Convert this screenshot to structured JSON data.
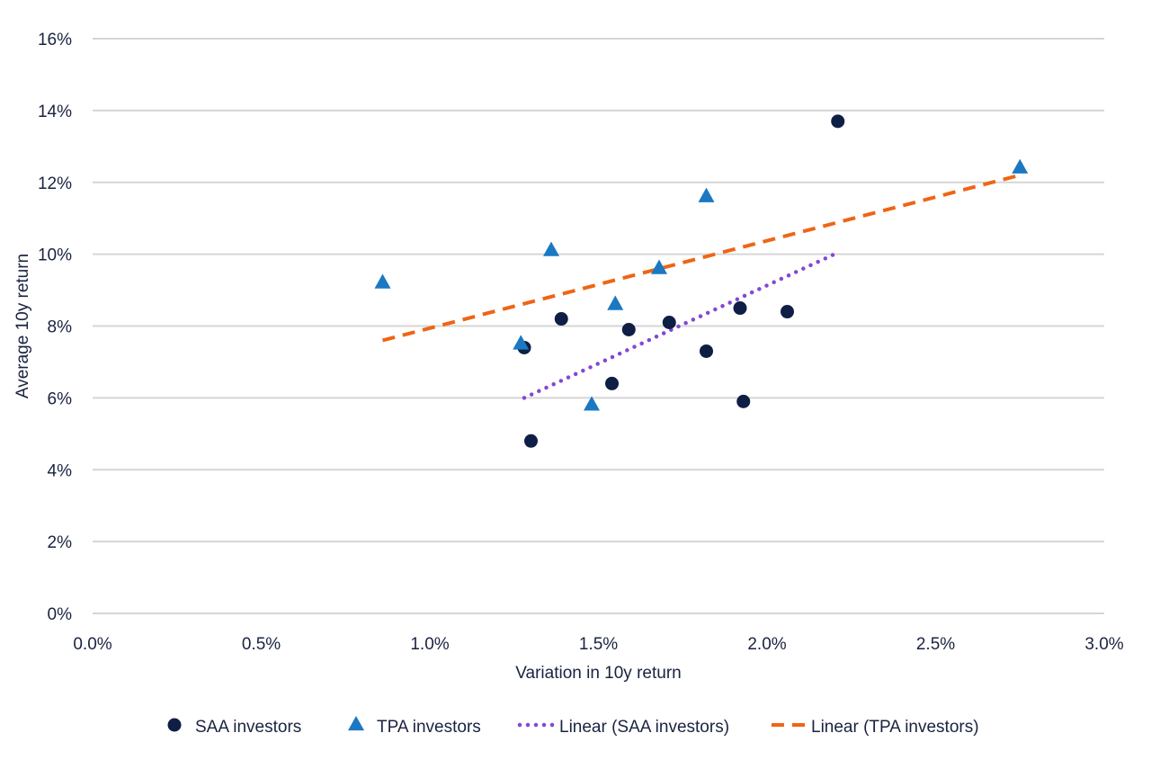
{
  "chart_data": {
    "type": "scatter",
    "title": "",
    "xlabel": "Variation in 10y return",
    "ylabel": "Average 10y return",
    "xlim": [
      0,
      3.0
    ],
    "ylim": [
      0,
      16
    ],
    "x_ticks": [
      0,
      0.5,
      1.0,
      1.5,
      2.0,
      2.5,
      3.0
    ],
    "x_tick_labels": [
      "0.0%",
      "0.5%",
      "1.0%",
      "1.5%",
      "2.0%",
      "2.5%",
      "3.0%"
    ],
    "y_ticks": [
      0,
      2,
      4,
      6,
      8,
      10,
      12,
      14,
      16
    ],
    "y_tick_labels": [
      "0%",
      "2%",
      "4%",
      "6%",
      "8%",
      "10%",
      "12%",
      "14%",
      "16%"
    ],
    "grid": "horizontal",
    "legend_position": "bottom",
    "series": [
      {
        "name": "SAA investors",
        "marker": "circle",
        "color": "#0f1e45",
        "points": [
          {
            "x": 1.28,
            "y": 7.4
          },
          {
            "x": 1.3,
            "y": 4.8
          },
          {
            "x": 1.39,
            "y": 8.2
          },
          {
            "x": 1.54,
            "y": 6.4
          },
          {
            "x": 1.59,
            "y": 7.9
          },
          {
            "x": 1.71,
            "y": 8.1
          },
          {
            "x": 1.82,
            "y": 7.3
          },
          {
            "x": 1.92,
            "y": 8.5
          },
          {
            "x": 1.93,
            "y": 5.9
          },
          {
            "x": 2.06,
            "y": 8.4
          },
          {
            "x": 2.21,
            "y": 13.7
          }
        ]
      },
      {
        "name": "TPA investors",
        "marker": "triangle",
        "color": "#1b78c2",
        "points": [
          {
            "x": 0.86,
            "y": 9.2
          },
          {
            "x": 1.27,
            "y": 7.5
          },
          {
            "x": 1.36,
            "y": 10.1
          },
          {
            "x": 1.48,
            "y": 5.8
          },
          {
            "x": 1.55,
            "y": 8.6
          },
          {
            "x": 1.68,
            "y": 9.6
          },
          {
            "x": 1.82,
            "y": 11.6
          },
          {
            "x": 2.75,
            "y": 12.4
          }
        ]
      }
    ],
    "trendlines": [
      {
        "name": "Linear (SAA investors)",
        "style": "dotted",
        "color": "#8447d4",
        "start": {
          "x": 1.28,
          "y": 6.0
        },
        "end": {
          "x": 2.2,
          "y": 10.0
        }
      },
      {
        "name": "Linear (TPA investors)",
        "style": "dashed",
        "color": "#ee6515",
        "start": {
          "x": 0.86,
          "y": 7.6
        },
        "end": {
          "x": 2.75,
          "y": 12.2
        }
      }
    ]
  }
}
